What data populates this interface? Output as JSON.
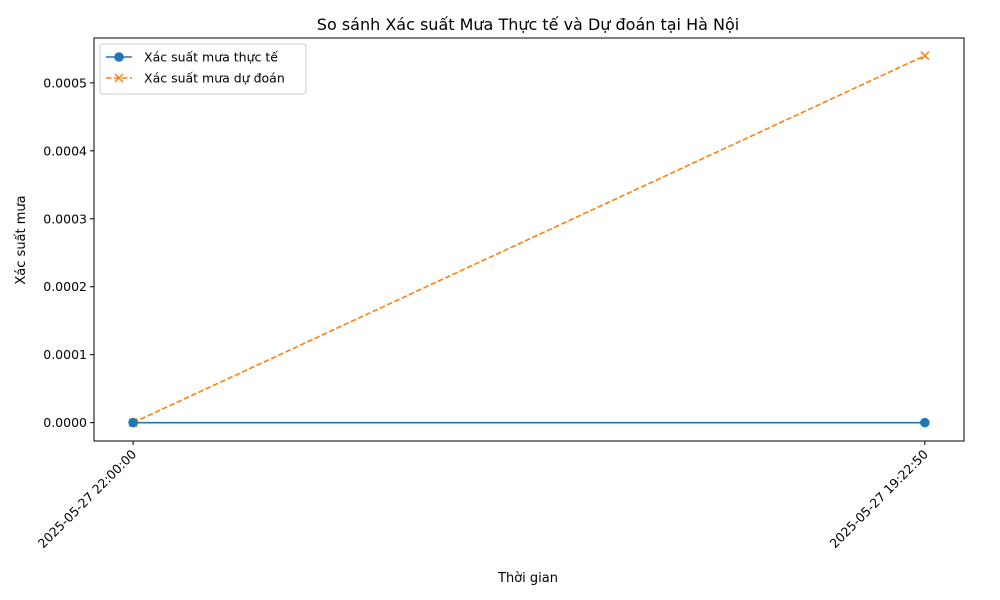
{
  "chart_data": {
    "type": "line",
    "title": "So sánh Xác suất Mưa Thực tế và Dự đoán tại Hà Nội",
    "xlabel": "Thời gian",
    "ylabel": "Xác suất mưa",
    "categories": [
      "2025-05-27 22:00:00",
      "2025-05-27 19:22:50"
    ],
    "ylim": [
      -2.7e-05,
      0.000566
    ],
    "yticks": [
      0.0,
      0.0001,
      0.0002,
      0.0003,
      0.0004,
      0.0005
    ],
    "ytick_labels": [
      "0.0000",
      "0.0001",
      "0.0002",
      "0.0003",
      "0.0004",
      "0.0005"
    ],
    "grid": false,
    "legend_position": "top-left",
    "series": [
      {
        "name": "Xác suất mưa thực tế",
        "values": [
          0.0,
          0.0
        ],
        "color": "#1f77b4",
        "marker": "circle",
        "linestyle": "solid"
      },
      {
        "name": "Xác suất mưa dự đoán",
        "values": [
          0.0,
          0.00054
        ],
        "color": "#ff7f0e",
        "marker": "x",
        "linestyle": "dashed"
      }
    ]
  }
}
